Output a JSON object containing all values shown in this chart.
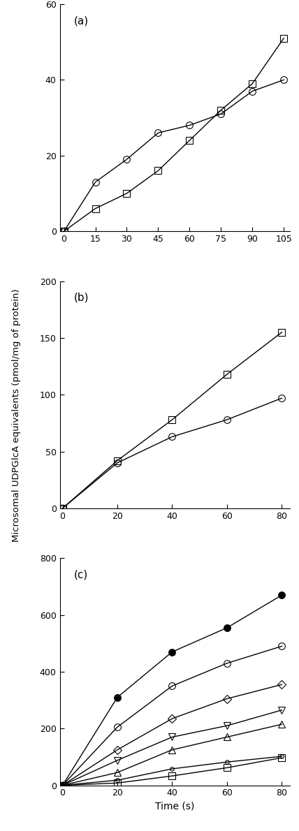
{
  "panel_a": {
    "xlabel_ticks": [
      0,
      15,
      30,
      45,
      60,
      75,
      90,
      105
    ],
    "ylim": [
      0,
      60
    ],
    "yticks": [
      0,
      20,
      40,
      60
    ],
    "xlim": [
      -2,
      108
    ],
    "label": "(a)",
    "series": [
      {
        "x": [
          0,
          15,
          30,
          45,
          60,
          75,
          90,
          105
        ],
        "y": [
          0,
          13,
          19,
          26,
          28,
          31,
          37,
          40
        ],
        "marker": "o",
        "fillstyle": "none",
        "markersize": 7
      },
      {
        "x": [
          0,
          15,
          30,
          45,
          60,
          75,
          90,
          105
        ],
        "y": [
          0,
          6,
          10,
          16,
          24,
          32,
          39,
          51
        ],
        "marker": "s",
        "fillstyle": "none",
        "markersize": 7
      }
    ]
  },
  "panel_b": {
    "xlabel_ticks": [
      0,
      20,
      40,
      60,
      80
    ],
    "ylim": [
      0,
      200
    ],
    "yticks": [
      0,
      50,
      100,
      150,
      200
    ],
    "xlim": [
      -1,
      83
    ],
    "label": "(b)",
    "series": [
      {
        "x": [
          0,
          20,
          40,
          60,
          80
        ],
        "y": [
          0,
          40,
          63,
          78,
          97
        ],
        "marker": "o",
        "fillstyle": "none",
        "markersize": 7
      },
      {
        "x": [
          0,
          20,
          40,
          60,
          80
        ],
        "y": [
          0,
          42,
          78,
          118,
          155
        ],
        "marker": "s",
        "fillstyle": "none",
        "markersize": 7
      }
    ]
  },
  "panel_c": {
    "xlabel_ticks": [
      0,
      20,
      40,
      60,
      80
    ],
    "ylim": [
      0,
      800
    ],
    "yticks": [
      0,
      200,
      400,
      600,
      800
    ],
    "xlim": [
      -1,
      83
    ],
    "label": "(c)",
    "series": [
      {
        "x": [
          0,
          20,
          40,
          60,
          80
        ],
        "y": [
          0,
          310,
          470,
          555,
          670
        ],
        "marker": "o",
        "fillstyle": "full",
        "markersize": 7
      },
      {
        "x": [
          0,
          20,
          40,
          60,
          80
        ],
        "y": [
          0,
          205,
          350,
          430,
          490
        ],
        "marker": "o",
        "fillstyle": "none",
        "markersize": 7
      },
      {
        "x": [
          0,
          20,
          40,
          60,
          80
        ],
        "y": [
          0,
          125,
          235,
          305,
          355
        ],
        "marker": "D",
        "fillstyle": "none",
        "markersize": 6
      },
      {
        "x": [
          0,
          20,
          40,
          60,
          80
        ],
        "y": [
          0,
          88,
          170,
          210,
          265
        ],
        "marker": "v",
        "fillstyle": "none",
        "markersize": 7
      },
      {
        "x": [
          0,
          20,
          40,
          60,
          80
        ],
        "y": [
          0,
          45,
          125,
          170,
          215
        ],
        "marker": "^",
        "fillstyle": "none",
        "markersize": 7
      },
      {
        "x": [
          0,
          20,
          40,
          60,
          80
        ],
        "y": [
          0,
          18,
          58,
          82,
          102
        ],
        "marker": "o",
        "fillstyle": "none",
        "markersize": 4
      },
      {
        "x": [
          0,
          20,
          40,
          60,
          80
        ],
        "y": [
          0,
          8,
          33,
          62,
          97
        ],
        "marker": "s",
        "fillstyle": "none",
        "markersize": 7
      }
    ]
  },
  "ylabel": "Microsomal UDPGlcA equivalents (pmol/mg of protein)",
  "xlabel": "Time (s)",
  "background_color": "white",
  "line_color": "black",
  "linewidth": 1.0,
  "tick_fontsize": 9,
  "label_fontsize": 10
}
